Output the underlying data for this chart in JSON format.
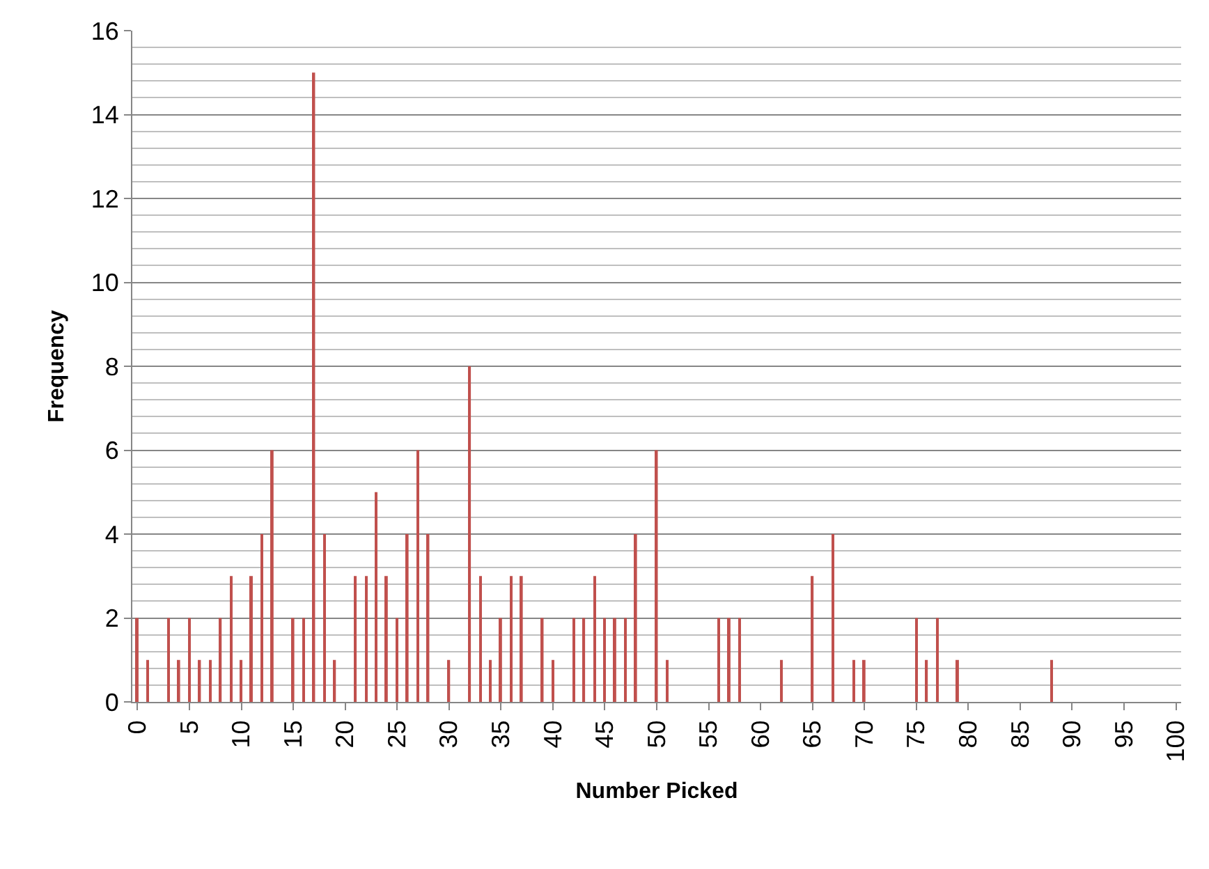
{
  "chart_data": {
    "type": "bar",
    "xlabel": "Number Picked",
    "ylabel": "Frequency",
    "categories": [
      "0",
      null,
      null,
      null,
      null,
      "5",
      null,
      null,
      null,
      null,
      "10",
      null,
      null,
      null,
      null,
      "15",
      null,
      null,
      null,
      null,
      "20",
      null,
      null,
      null,
      null,
      "25",
      null,
      null,
      null,
      null,
      "30",
      null,
      null,
      null,
      null,
      "35",
      null,
      null,
      null,
      null,
      "40",
      null,
      null,
      null,
      null,
      "45",
      null,
      null,
      null,
      null,
      "50",
      null,
      null,
      null,
      null,
      "55",
      null,
      null,
      null,
      null,
      "60",
      null,
      null,
      null,
      null,
      "65",
      null,
      null,
      null,
      null,
      "70",
      null,
      null,
      null,
      null,
      "75",
      null,
      null,
      null,
      null,
      "80",
      null,
      null,
      null,
      null,
      "85",
      null,
      null,
      null,
      null,
      "90",
      null,
      null,
      null,
      null,
      "95",
      null,
      null,
      null,
      null,
      "100"
    ],
    "values": [
      2,
      1,
      0,
      2,
      1,
      2,
      1,
      1,
      2,
      3,
      1,
      3,
      4,
      6,
      0,
      2,
      2,
      15,
      4,
      1,
      0,
      3,
      3,
      5,
      3,
      2,
      4,
      6,
      4,
      0,
      1,
      0,
      8,
      3,
      1,
      2,
      3,
      3,
      0,
      2,
      1,
      0,
      2,
      2,
      3,
      2,
      2,
      2,
      4,
      0,
      6,
      1,
      0,
      0,
      0,
      0,
      2,
      2,
      2,
      0,
      0,
      0,
      1,
      0,
      0,
      3,
      0,
      4,
      0,
      1,
      1,
      0,
      0,
      0,
      0,
      2,
      1,
      2,
      0,
      1,
      0,
      0,
      0,
      0,
      0,
      0,
      0,
      0,
      1,
      0,
      0,
      0,
      0,
      0,
      0,
      0,
      0,
      0,
      0,
      0,
      0
    ],
    "color": "#c0504d",
    "ylim": [
      0,
      16
    ],
    "yticks": [
      0,
      2,
      4,
      6,
      8,
      10,
      12,
      14,
      16
    ],
    "grid": "y",
    "legend": false
  }
}
